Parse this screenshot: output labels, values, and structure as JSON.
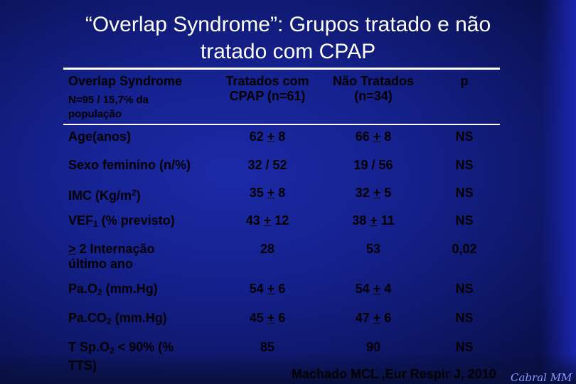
{
  "slide": {
    "title_line1": "“Overlap Syndrome”: Grupos tratado e não",
    "title_line2": "tratado com CPAP",
    "citation": "Machado MCL ,Eur Respir J, 2010",
    "signature": "Cabral MM"
  },
  "table": {
    "header": {
      "col1": "Overlap Syndrome",
      "col1_sub": "N=95 / 15,7% da população",
      "col2": "Tratados com CPAP (n=61)",
      "col3": "Não Tratados (n=34)",
      "col4": "p"
    },
    "rows": [
      {
        "label": "Age(anos)",
        "a_pre": "62 ",
        "a_sign": "+",
        "a_post": " 8",
        "b_pre": "66 ",
        "b_sign": "+",
        "b_post": " 8",
        "p": "NS"
      },
      {
        "label": "Sexo feminino (n/%)",
        "a": "32 / 52",
        "b": "19 / 56",
        "p": "NS"
      },
      {
        "label_pre": "IMC (Kg/m",
        "label_sup": "2",
        "label_post": ")",
        "a_pre": "35 ",
        "a_sign": "+",
        "a_post": " 8",
        "b_pre": "32 ",
        "b_sign": "+",
        "b_post": " 5",
        "p": "NS"
      },
      {
        "label_pre": "VEF",
        "label_sub": "1",
        "label_post": " (% previsto)",
        "a_pre": "43 ",
        "a_sign": "+",
        "a_post": " 12",
        "b_pre": "38 ",
        "b_sign": "+",
        "b_post": " 11",
        "p": "NS"
      },
      {
        "label_sign": ">",
        "label_post": " 2 Internação último ano",
        "a": "28",
        "b": "53",
        "p": "0,02"
      },
      {
        "label_pre": "Pa.O",
        "label_sub": "2",
        "label_post": " (mm.Hg)",
        "a_pre": "54 ",
        "a_sign": "+",
        "a_post": " 6",
        "b_pre": "54 ",
        "b_sign": "+",
        "b_post": " 4",
        "p": "NS"
      },
      {
        "label_pre": "Pa.CO",
        "label_sub": "2",
        "label_post": " (mm.Hg)",
        "a_pre": "45 ",
        "a_sign": "+",
        "a_post": " 6",
        "b_pre": "47 ",
        "b_sign": "+",
        "b_post": " 6",
        "p": "NS"
      },
      {
        "label_pre": "T Sp.O",
        "label_sub": "2",
        "label_post": " < 90% (% TTS)",
        "a": "85",
        "b": "90",
        "p": "NS"
      }
    ]
  }
}
